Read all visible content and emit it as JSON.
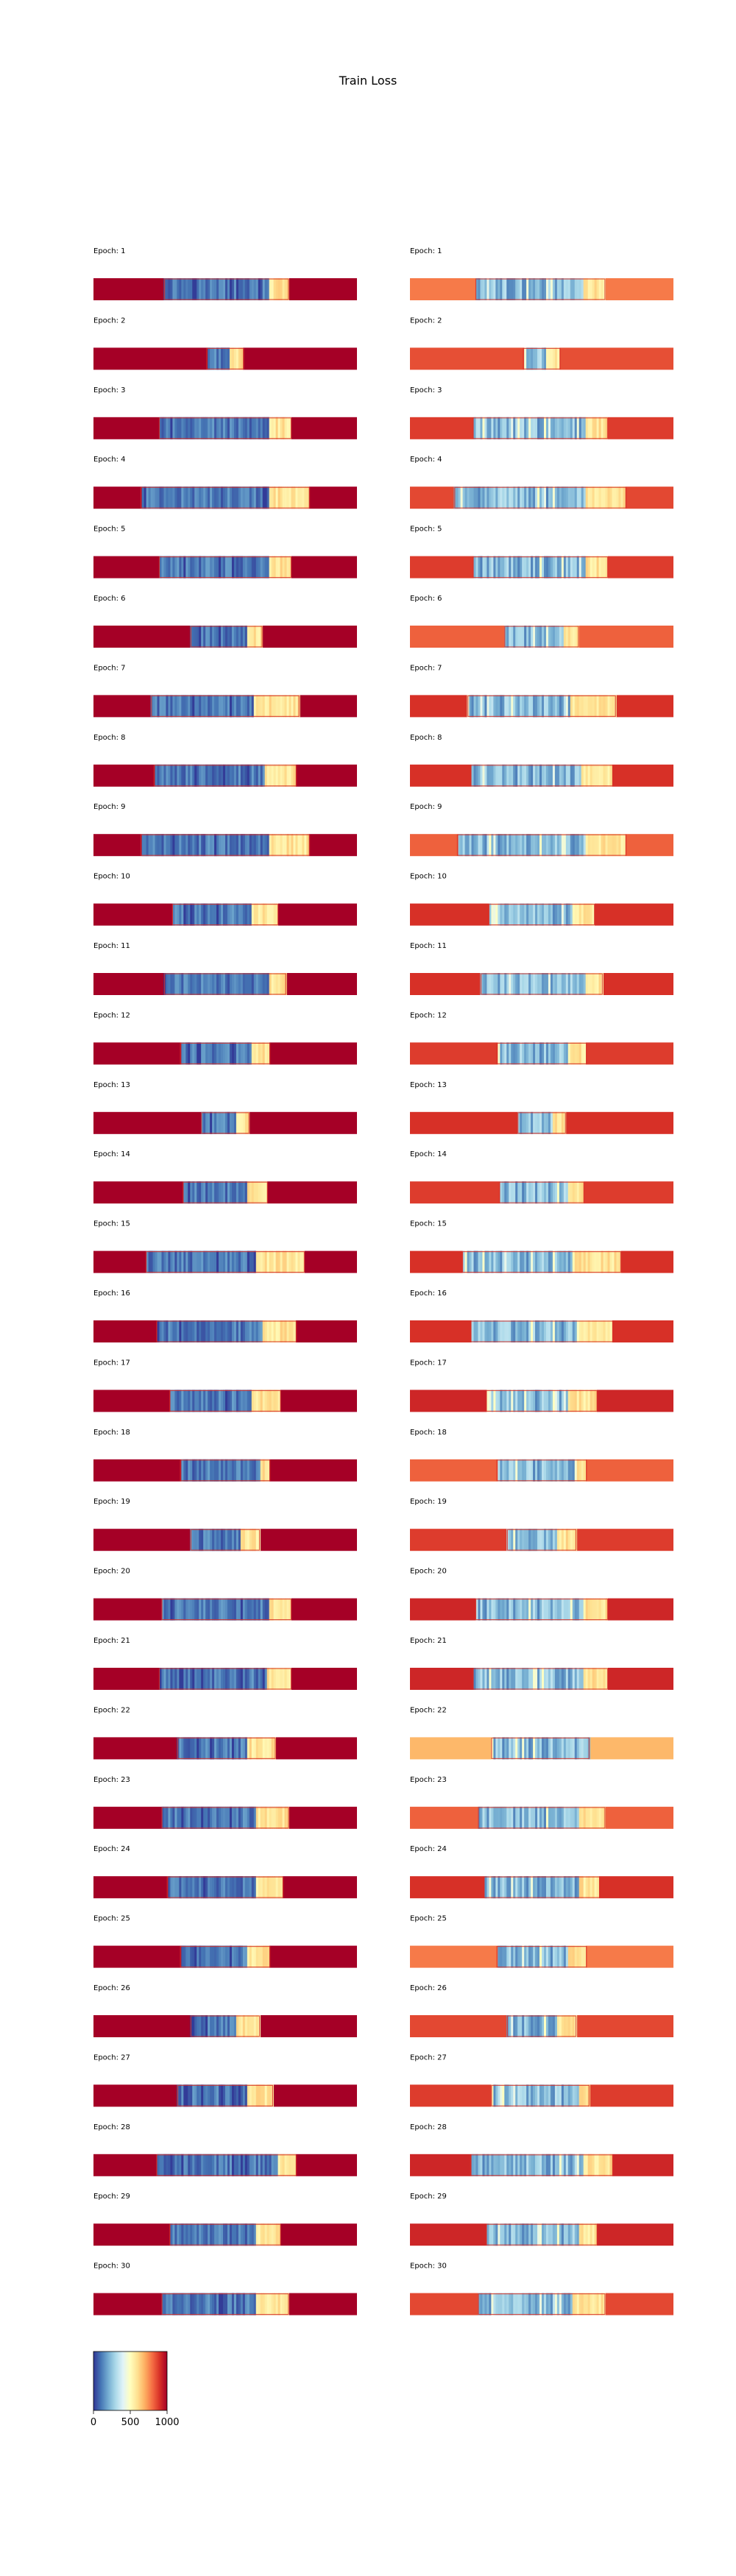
{
  "figure": {
    "title": "Train Loss"
  },
  "chart_data": {
    "type": "heatmap",
    "title": "Train Loss",
    "colormap": "RdYlBu_r",
    "color_range": [
      0,
      1000
    ],
    "colorbar_ticks": [
      "0",
      "500",
      "1000"
    ],
    "columns": [
      "left",
      "right"
    ],
    "epoch_label_prefix": "Epoch: ",
    "epochs": [
      {
        "epoch": 1,
        "left": {
          "bg": 1000,
          "start": 0.27,
          "end": 0.74,
          "warm_from": 0.67
        },
        "right": {
          "bg": 780,
          "start": 0.25,
          "end": 0.74,
          "warm_from": 0.66
        }
      },
      {
        "epoch": 2,
        "left": {
          "bg": 1000,
          "start": 0.43,
          "end": 0.57,
          "warm_from": 0.52
        },
        "right": {
          "bg": 850,
          "start": 0.43,
          "end": 0.57,
          "warm_from": 0.52
        }
      },
      {
        "epoch": 3,
        "left": {
          "bg": 1000,
          "start": 0.25,
          "end": 0.75,
          "warm_from": 0.67
        },
        "right": {
          "bg": 880,
          "start": 0.24,
          "end": 0.75,
          "warm_from": 0.67
        }
      },
      {
        "epoch": 4,
        "left": {
          "bg": 1000,
          "start": 0.18,
          "end": 0.82,
          "warm_from": 0.67
        },
        "right": {
          "bg": 860,
          "start": 0.17,
          "end": 0.82,
          "warm_from": 0.67
        }
      },
      {
        "epoch": 5,
        "left": {
          "bg": 1000,
          "start": 0.25,
          "end": 0.75,
          "warm_from": 0.67
        },
        "right": {
          "bg": 880,
          "start": 0.24,
          "end": 0.75,
          "warm_from": 0.67
        }
      },
      {
        "epoch": 6,
        "left": {
          "bg": 1000,
          "start": 0.37,
          "end": 0.64,
          "warm_from": 0.58
        },
        "right": {
          "bg": 820,
          "start": 0.36,
          "end": 0.64,
          "warm_from": 0.58
        }
      },
      {
        "epoch": 7,
        "left": {
          "bg": 1000,
          "start": 0.22,
          "end": 0.78,
          "warm_from": 0.61
        },
        "right": {
          "bg": 900,
          "start": 0.22,
          "end": 0.78,
          "warm_from": 0.61
        }
      },
      {
        "epoch": 8,
        "left": {
          "bg": 1000,
          "start": 0.23,
          "end": 0.77,
          "warm_from": 0.65
        },
        "right": {
          "bg": 900,
          "start": 0.23,
          "end": 0.77,
          "warm_from": 0.65
        }
      },
      {
        "epoch": 9,
        "left": {
          "bg": 1000,
          "start": 0.18,
          "end": 0.82,
          "warm_from": 0.67
        },
        "right": {
          "bg": 820,
          "start": 0.18,
          "end": 0.82,
          "warm_from": 0.67
        }
      },
      {
        "epoch": 10,
        "left": {
          "bg": 1000,
          "start": 0.3,
          "end": 0.7,
          "warm_from": 0.6
        },
        "right": {
          "bg": 900,
          "start": 0.3,
          "end": 0.7,
          "warm_from": 0.62
        }
      },
      {
        "epoch": 11,
        "left": {
          "bg": 1000,
          "start": 0.27,
          "end": 0.73,
          "warm_from": 0.67
        },
        "right": {
          "bg": 900,
          "start": 0.27,
          "end": 0.73,
          "warm_from": 0.67
        }
      },
      {
        "epoch": 12,
        "left": {
          "bg": 1000,
          "start": 0.33,
          "end": 0.67,
          "warm_from": 0.6
        },
        "right": {
          "bg": 880,
          "start": 0.33,
          "end": 0.67,
          "warm_from": 0.6
        }
      },
      {
        "epoch": 13,
        "left": {
          "bg": 1000,
          "start": 0.41,
          "end": 0.59,
          "warm_from": 0.54
        },
        "right": {
          "bg": 900,
          "start": 0.41,
          "end": 0.59,
          "warm_from": 0.54
        }
      },
      {
        "epoch": 14,
        "left": {
          "bg": 1000,
          "start": 0.34,
          "end": 0.66,
          "warm_from": 0.58
        },
        "right": {
          "bg": 880,
          "start": 0.34,
          "end": 0.66,
          "warm_from": 0.6
        }
      },
      {
        "epoch": 15,
        "left": {
          "bg": 1000,
          "start": 0.2,
          "end": 0.8,
          "warm_from": 0.62
        },
        "right": {
          "bg": 900,
          "start": 0.2,
          "end": 0.8,
          "warm_from": 0.62
        }
      },
      {
        "epoch": 16,
        "left": {
          "bg": 1000,
          "start": 0.24,
          "end": 0.77,
          "warm_from": 0.64
        },
        "right": {
          "bg": 900,
          "start": 0.23,
          "end": 0.77,
          "warm_from": 0.64
        }
      },
      {
        "epoch": 17,
        "left": {
          "bg": 1000,
          "start": 0.29,
          "end": 0.71,
          "warm_from": 0.6
        },
        "right": {
          "bg": 920,
          "start": 0.29,
          "end": 0.71,
          "warm_from": 0.6
        }
      },
      {
        "epoch": 18,
        "left": {
          "bg": 1000,
          "start": 0.33,
          "end": 0.67,
          "warm_from": 0.63
        },
        "right": {
          "bg": 820,
          "start": 0.33,
          "end": 0.67,
          "warm_from": 0.63
        }
      },
      {
        "epoch": 19,
        "left": {
          "bg": 1000,
          "start": 0.37,
          "end": 0.63,
          "warm_from": 0.56
        },
        "right": {
          "bg": 880,
          "start": 0.37,
          "end": 0.63,
          "warm_from": 0.56
        }
      },
      {
        "epoch": 20,
        "left": {
          "bg": 1000,
          "start": 0.26,
          "end": 0.75,
          "warm_from": 0.67
        },
        "right": {
          "bg": 920,
          "start": 0.25,
          "end": 0.75,
          "warm_from": 0.66
        }
      },
      {
        "epoch": 21,
        "left": {
          "bg": 1000,
          "start": 0.25,
          "end": 0.75,
          "warm_from": 0.66
        },
        "right": {
          "bg": 920,
          "start": 0.24,
          "end": 0.75,
          "warm_from": 0.66
        }
      },
      {
        "epoch": 22,
        "left": {
          "bg": 1000,
          "start": 0.32,
          "end": 0.69,
          "warm_from": 0.58
        },
        "right": {
          "bg": 680,
          "start": 0.31,
          "end": 0.68,
          "warm_from": 0.68
        }
      },
      {
        "epoch": 23,
        "left": {
          "bg": 1000,
          "start": 0.26,
          "end": 0.74,
          "warm_from": 0.62
        },
        "right": {
          "bg": 820,
          "start": 0.26,
          "end": 0.74,
          "warm_from": 0.64
        }
      },
      {
        "epoch": 24,
        "left": {
          "bg": 1000,
          "start": 0.28,
          "end": 0.72,
          "warm_from": 0.62
        },
        "right": {
          "bg": 900,
          "start": 0.28,
          "end": 0.72,
          "warm_from": 0.64
        }
      },
      {
        "epoch": 25,
        "left": {
          "bg": 1000,
          "start": 0.33,
          "end": 0.67,
          "warm_from": 0.58
        },
        "right": {
          "bg": 780,
          "start": 0.33,
          "end": 0.67,
          "warm_from": 0.6
        }
      },
      {
        "epoch": 26,
        "left": {
          "bg": 1000,
          "start": 0.37,
          "end": 0.63,
          "warm_from": 0.54
        },
        "right": {
          "bg": 860,
          "start": 0.37,
          "end": 0.63,
          "warm_from": 0.56
        }
      },
      {
        "epoch": 27,
        "left": {
          "bg": 1000,
          "start": 0.32,
          "end": 0.68,
          "warm_from": 0.58
        },
        "right": {
          "bg": 880,
          "start": 0.31,
          "end": 0.68,
          "warm_from": 0.64
        }
      },
      {
        "epoch": 28,
        "left": {
          "bg": 1000,
          "start": 0.24,
          "end": 0.77,
          "warm_from": 0.7
        },
        "right": {
          "bg": 920,
          "start": 0.23,
          "end": 0.77,
          "warm_from": 0.66
        }
      },
      {
        "epoch": 29,
        "left": {
          "bg": 1000,
          "start": 0.29,
          "end": 0.71,
          "warm_from": 0.62
        },
        "right": {
          "bg": 920,
          "start": 0.29,
          "end": 0.71,
          "warm_from": 0.64
        }
      },
      {
        "epoch": 30,
        "left": {
          "bg": 1000,
          "start": 0.26,
          "end": 0.74,
          "warm_from": 0.62
        },
        "right": {
          "bg": 860,
          "start": 0.26,
          "end": 0.74,
          "warm_from": 0.62
        }
      }
    ]
  }
}
